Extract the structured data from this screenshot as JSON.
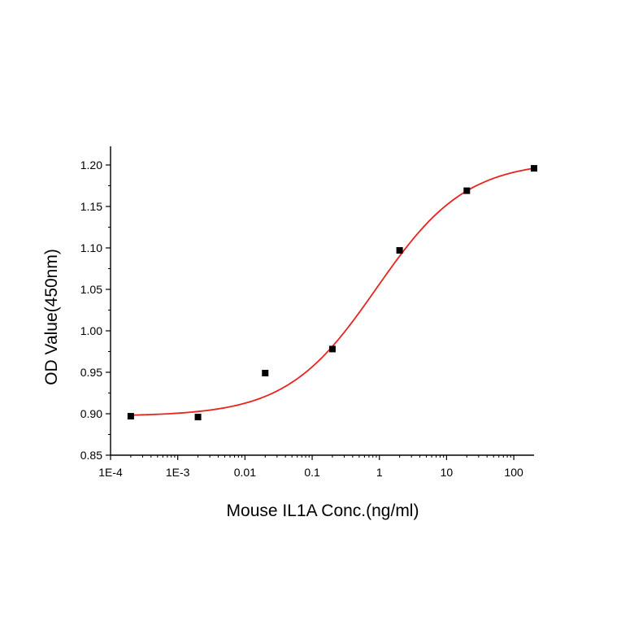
{
  "chart_data": {
    "type": "scatter",
    "title": "",
    "xlabel": "Mouse IL1A Conc.(ng/ml)",
    "ylabel": "OD Value(450nm)",
    "x_scale": "log",
    "xlim": [
      0.0001,
      200
    ],
    "ylim": [
      0.85,
      1.22
    ],
    "x_ticks": [
      {
        "value": 0.0001,
        "label": "1E-4"
      },
      {
        "value": 0.001,
        "label": "1E-3"
      },
      {
        "value": 0.01,
        "label": "0.01"
      },
      {
        "value": 0.1,
        "label": "0.1"
      },
      {
        "value": 1,
        "label": "1"
      },
      {
        "value": 10,
        "label": "10"
      },
      {
        "value": 100,
        "label": "100"
      }
    ],
    "y_ticks": [
      {
        "value": 0.85,
        "label": "0.85"
      },
      {
        "value": 0.9,
        "label": "0.90"
      },
      {
        "value": 0.95,
        "label": "0.95"
      },
      {
        "value": 1.0,
        "label": "1.00"
      },
      {
        "value": 1.05,
        "label": "1.05"
      },
      {
        "value": 1.1,
        "label": "1.10"
      },
      {
        "value": 1.15,
        "label": "1.15"
      },
      {
        "value": 1.2,
        "label": "1.20"
      }
    ],
    "grid": false,
    "legend": "none",
    "series": [
      {
        "kind": "points",
        "marker": "square",
        "color": "#000000",
        "x": [
          0.0002,
          0.002,
          0.02,
          0.2,
          2,
          20,
          200
        ],
        "y": [
          0.897,
          0.896,
          0.949,
          0.978,
          1.097,
          1.169,
          1.196
        ]
      },
      {
        "kind": "fit",
        "model": "4PL",
        "color": "#e8231f",
        "bottom": 0.897,
        "top": 1.205,
        "ec50": 0.9,
        "hill": 0.65
      }
    ]
  }
}
